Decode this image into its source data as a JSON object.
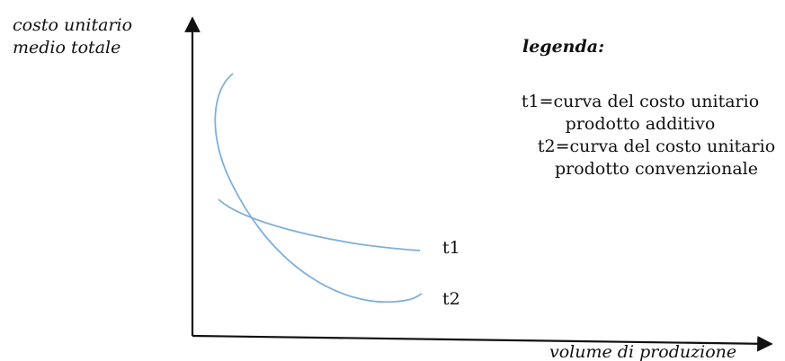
{
  "chart_data": {
    "type": "line",
    "ylabel_lines": [
      "costo unitario",
      "medio totale"
    ],
    "xlabel": "volume di produzione",
    "legend": {
      "title": "legenda:",
      "lines": [
        "t1=curva del costo unitario",
        "prodotto additivo",
        "t2=curva del costo unitario",
        "prodotto convenzionale"
      ]
    },
    "series": [
      {
        "name": "t1",
        "color": "#7fb0d8"
      },
      {
        "name": "t2",
        "color": "#7fb0d8"
      }
    ],
    "axis_color": "#111111"
  }
}
